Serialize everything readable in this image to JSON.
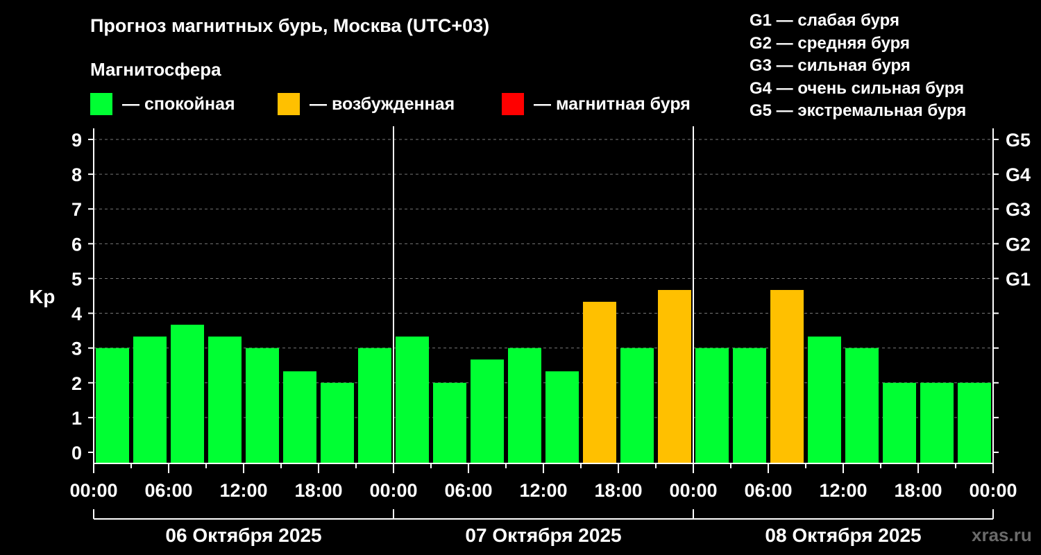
{
  "title": "Прогноз магнитных бурь, Москва (UTC+03)",
  "legend": {
    "heading": "Магнитосфера",
    "items": [
      {
        "label": "— спокойная",
        "color": "#00ff33"
      },
      {
        "label": "— возбужденная",
        "color": "#ffc000"
      },
      {
        "label": "— магнитная буря",
        "color": "#ff0000"
      }
    ]
  },
  "g_scale": [
    "G1 — слабая буря",
    "G2 — средняя буря",
    "G3 — сильная буря",
    "G4 — очень сильная буря",
    "G5 — экстремальная буря"
  ],
  "watermark": "xras.ru",
  "chart_data": {
    "type": "bar",
    "ylabel": "Kp",
    "ylim": [
      0,
      9
    ],
    "y_ticks": [
      "0",
      "1",
      "2",
      "3",
      "4",
      "5",
      "6",
      "7",
      "8",
      "9"
    ],
    "right_ticks": [
      {
        "label": "G1",
        "kp": 5
      },
      {
        "label": "G2",
        "kp": 6
      },
      {
        "label": "G3",
        "kp": 7
      },
      {
        "label": "G4",
        "kp": 8
      },
      {
        "label": "G5",
        "kp": 9
      }
    ],
    "x_ticks": [
      "00:00",
      "06:00",
      "12:00",
      "18:00",
      "00:00",
      "06:00",
      "12:00",
      "18:00",
      "00:00",
      "06:00",
      "12:00",
      "18:00",
      "00:00"
    ],
    "days": [
      "06 Октября 2025",
      "07 Октября 2025",
      "08 Октября 2025"
    ],
    "grid": true,
    "series": [
      {
        "values": [
          3.0,
          3.33,
          3.67,
          3.33,
          3.0,
          2.33,
          2.0,
          3.0,
          3.33,
          2.0,
          2.67,
          3.0,
          2.33,
          4.33,
          3.0,
          4.67,
          3.0,
          3.0,
          4.67,
          3.33,
          3.0,
          2.0,
          2.0,
          2.0
        ],
        "colors": [
          "#00ff33",
          "#00ff33",
          "#00ff33",
          "#00ff33",
          "#00ff33",
          "#00ff33",
          "#00ff33",
          "#00ff33",
          "#00ff33",
          "#00ff33",
          "#00ff33",
          "#00ff33",
          "#00ff33",
          "#ffc000",
          "#00ff33",
          "#ffc000",
          "#00ff33",
          "#00ff33",
          "#ffc000",
          "#00ff33",
          "#00ff33",
          "#00ff33",
          "#00ff33",
          "#00ff33"
        ]
      }
    ]
  }
}
